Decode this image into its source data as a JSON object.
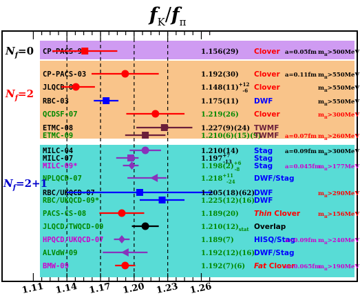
{
  "chart_data": {
    "type": "scatter",
    "title_main": "f",
    "title_sub1": "K",
    "title_slash": "/",
    "title_main2": "f",
    "title_sub2": "π",
    "xlim": [
      1.095,
      1.272
    ],
    "ticks": [
      "1.11",
      "1.14",
      "1.17",
      "1.20",
      "1.23",
      "1.26"
    ],
    "tick_values": [
      1.11,
      1.14,
      1.17,
      1.2,
      1.23,
      1.26
    ],
    "dashed_lines": [
      1.14,
      1.17,
      1.2,
      1.23
    ],
    "groups": [
      {
        "label": "N",
        "label_sub": "f",
        "label_rest": "=0",
        "color": "#000000",
        "bg": "#cf9bf2"
      },
      {
        "label": "N",
        "label_sub": "f",
        "label_rest": "=2",
        "color": "#ff0000",
        "bg": "#f9c48a"
      },
      {
        "label": "N",
        "label_sub": "f",
        "label_rest": "=2+1",
        "color": "#0000cc",
        "bg": "#58dcd6"
      }
    ],
    "entries": [
      {
        "name": "CP-PACS-98",
        "name_color": "#000000",
        "value": 1.156,
        "err_lo": 0.029,
        "err_hi": 0.029,
        "marker": "square",
        "color": "#ff0000",
        "result": "1.156(29)",
        "result_color": "#000000",
        "action": "Clover",
        "action_color": "#ff0000",
        "a": "a=0.05fm",
        "a_color": "#000000",
        "m": "m",
        "m_sub": "π",
        "m_rest": ">500MeV",
        "m_color": "#000000"
      },
      {
        "name": "CP-PACS-03",
        "name_color": "#000000",
        "value": 1.192,
        "err_lo": 0.03,
        "err_hi": 0.03,
        "marker": "circle",
        "color": "#ff0000",
        "result": "1.192(30)",
        "result_color": "#000000",
        "action": "Clover",
        "action_color": "#ff0000",
        "a": "a=0.11fm",
        "a_color": "#000000",
        "m": "m",
        "m_sub": "π",
        "m_rest": ">550MeV",
        "m_color": "#000000"
      },
      {
        "name": "JLQCD-03",
        "name_color": "#000000",
        "value": 1.148,
        "err_lo": 0.013,
        "err_hi": 0.017,
        "marker": "circle",
        "color": "#ff0000",
        "result": "1.148(11)",
        "result_sup": "+12",
        "result_sub": "-6",
        "result_color": "#000000",
        "action": "Clover",
        "action_color": "#ff0000",
        "a": "",
        "a_color": "#000000",
        "m": "m",
        "m_sub": "π",
        "m_rest": ">550MeV",
        "m_color": "#000000"
      },
      {
        "name": "RBC-03",
        "name_color": "#000000",
        "value": 1.175,
        "err_lo": 0.011,
        "err_hi": 0.011,
        "marker": "square",
        "color": "#0000ff",
        "result": "1.175(11)",
        "result_color": "#000000",
        "action": "DWF",
        "action_color": "#0000ff",
        "a": "",
        "a_color": "#000000",
        "m": "m",
        "m_sub": "π",
        "m_rest": ">550MeV",
        "m_color": "#000000"
      },
      {
        "name": "QCDSF-07",
        "name_color": "#008800",
        "value": 1.219,
        "err_lo": 0.026,
        "err_hi": 0.026,
        "marker": "circle",
        "color": "#ff0000",
        "result": "1.219(26)",
        "result_color": "#008800",
        "action": "Clover",
        "action_color": "#ff0000",
        "a": "",
        "a_color": "#000000",
        "m": "m",
        "m_sub": "π",
        "m_rest": ">300MeV",
        "m_color": "#ff0000"
      },
      {
        "name": "ETMC-08",
        "name_color": "#000000",
        "value": 1.227,
        "err_lo": 0.025,
        "err_hi": 0.025,
        "marker": "square",
        "color": "#6b1f3a",
        "result": "1.227(9)(24)",
        "result_color": "#000000",
        "action": "TWMF",
        "action_color": "#6b1f3a",
        "a": "",
        "a_color": "#000000",
        "m": "",
        "m_sub": "",
        "m_rest": "",
        "m_color": "#000000"
      },
      {
        "name": "ETMC-09",
        "name_color": "#008800",
        "value": 1.21,
        "err_lo": 0.018,
        "err_hi": 0.018,
        "marker": "square",
        "color": "#6b1f3a",
        "result": "1.210(6)(15)(9)",
        "result_color": "#008800",
        "action": "TWMF",
        "action_color": "#6b1f3a",
        "a": "a=0.07fm",
        "a_color": "#ff0000",
        "m": "m",
        "m_sub": "π",
        "m_rest": ">260MeV",
        "m_color": "#ff0000"
      },
      {
        "name": "MILC-04",
        "name_color": "#000000",
        "value": 1.21,
        "err_lo": 0.014,
        "err_hi": 0.014,
        "marker": "circle",
        "color": "#8833bb",
        "result": "1.210(14)",
        "result_color": "#000000",
        "action": "Stag",
        "action_color": "#0000ff",
        "a": "a=0.09fm",
        "a_color": "#000000",
        "m": "m",
        "m_sub": "π",
        "m_rest": ">300MeV",
        "m_color": "#000000"
      },
      {
        "name": "MILC-07",
        "name_color": "#000000",
        "value": 1.197,
        "err_lo": 0.013,
        "err_hi": 0.007,
        "marker": "square",
        "color": "#8833bb",
        "result": "1.197",
        "result_sup": "+7",
        "result_sub": "-13",
        "result_color": "#000000",
        "action": "Stag",
        "action_color": "#0000ff",
        "a": "",
        "a_color": "#000000",
        "m": "",
        "m_sub": "",
        "m_rest": "",
        "m_color": "#000000"
      },
      {
        "name": "MILC-09*",
        "name_color": "#cc00cc",
        "value": 1.198,
        "err_lo": 0.008,
        "err_hi": 0.006,
        "marker": "diamond",
        "color": "#8833bb",
        "result": "1.198(2)",
        "result_sup": "+6",
        "result_sub": "-8",
        "result_color": "#008800",
        "action": "Stag",
        "action_color": "#0000ff",
        "a": "a=0.045fm",
        "a_color": "#cc00cc",
        "m": "m",
        "m_sub": "π",
        "m_rest": ">177MeV",
        "m_color": "#cc00cc"
      },
      {
        "name": "NPLQCD-07",
        "name_color": "#008800",
        "value": 1.218,
        "err_lo": 0.024,
        "err_hi": 0.011,
        "marker": "triangle",
        "color": "#8833bb",
        "result": "1.218",
        "result_sup": "+11",
        "result_sub": "-24",
        "result_color": "#008800",
        "action": "DWF/Stag",
        "action_color": "#0000ff",
        "a": "",
        "a_color": "#000000",
        "m": "",
        "m_sub": "",
        "m_rest": "",
        "m_color": "#000000"
      },
      {
        "name": "RBC/UKQCD-07",
        "name_color": "#000000",
        "value": 1.205,
        "err_lo": 0.065,
        "err_hi": 0.065,
        "marker": "square",
        "color": "#0000ff",
        "result": "1.205(18)(62)",
        "result_color": "#000000",
        "action": "DWF",
        "action_color": "#0000ff",
        "a": "",
        "a_color": "#000000",
        "m": "m",
        "m_sub": "π",
        "m_rest": ">290MeV",
        "m_color": "#ff0000"
      },
      {
        "name": "RBC/UKQCD-09*",
        "name_color": "#008800",
        "value": 1.225,
        "err_lo": 0.02,
        "err_hi": 0.02,
        "marker": "square",
        "color": "#0000ff",
        "result": "1.225(12)(16)",
        "result_color": "#008800",
        "action": "DWF",
        "action_color": "#0000ff",
        "a": "",
        "a_color": "#000000",
        "m": "",
        "m_sub": "",
        "m_rest": "",
        "m_color": "#000000"
      },
      {
        "name": "PACS-CS-08",
        "name_color": "#008800",
        "value": 1.189,
        "err_lo": 0.02,
        "err_hi": 0.02,
        "marker": "circle",
        "color": "#ff0000",
        "result": "1.189(20)",
        "result_color": "#008800",
        "action_it": "Thin",
        "action": "Clover",
        "action_color": "#ff0000",
        "a": "",
        "a_color": "#000000",
        "m": "m",
        "m_sub": "π",
        "m_rest": ">156MeV",
        "m_color": "#ff0000"
      },
      {
        "name": "JLQCD/TWQCD-09",
        "name_color": "#008800",
        "value": 1.21,
        "err_lo": 0.012,
        "err_hi": 0.012,
        "marker": "circle",
        "color": "#000000",
        "result": "1.210(12)",
        "result_subscript": "stat",
        "result_color": "#008800",
        "action": "Overlap",
        "action_color": "#000000",
        "a": "",
        "a_color": "#000000",
        "m": "",
        "m_sub": "",
        "m_rest": "",
        "m_color": "#000000"
      },
      {
        "name": "HPQCD/UKQCD-07",
        "name_color": "#cc00cc",
        "value": 1.189,
        "err_lo": 0.007,
        "err_hi": 0.007,
        "marker": "diamond",
        "color": "#8833bb",
        "result": "1.189(7)",
        "result_color": "#008800",
        "action": "HISQ/Stag",
        "action_color": "#0000ff",
        "a": "a=0.09fm",
        "a_color": "#cc00cc",
        "m": "m",
        "m_sub": "π",
        "m_rest": ">240MeV",
        "m_color": "#cc00cc"
      },
      {
        "name": "ALVdW-09",
        "name_color": "#008800",
        "value": 1.192,
        "err_lo": 0.02,
        "err_hi": 0.02,
        "marker": "triangle",
        "color": "#8833bb",
        "result": "1.192(12)(16)",
        "result_color": "#008800",
        "action": "DWF/Stag",
        "action_color": "#0000ff",
        "a": "",
        "a_color": "#000000",
        "m": "",
        "m_sub": "",
        "m_rest": "",
        "m_color": "#000000"
      },
      {
        "name": "BMW-09",
        "name_color": "#cc00cc",
        "value": 1.192,
        "err_lo": 0.009,
        "err_hi": 0.009,
        "marker": "circle",
        "color": "#ff0000",
        "result": "1.192(7)(6)",
        "result_color": "#008800",
        "action_it": "Fat",
        "action": "Clover",
        "action_color": "#ff0000",
        "a": "a=0.065fm",
        "a_color": "#cc00cc",
        "m": "m",
        "m_sub": "π",
        "m_rest": ">190MeV",
        "m_color": "#cc00cc"
      }
    ]
  }
}
